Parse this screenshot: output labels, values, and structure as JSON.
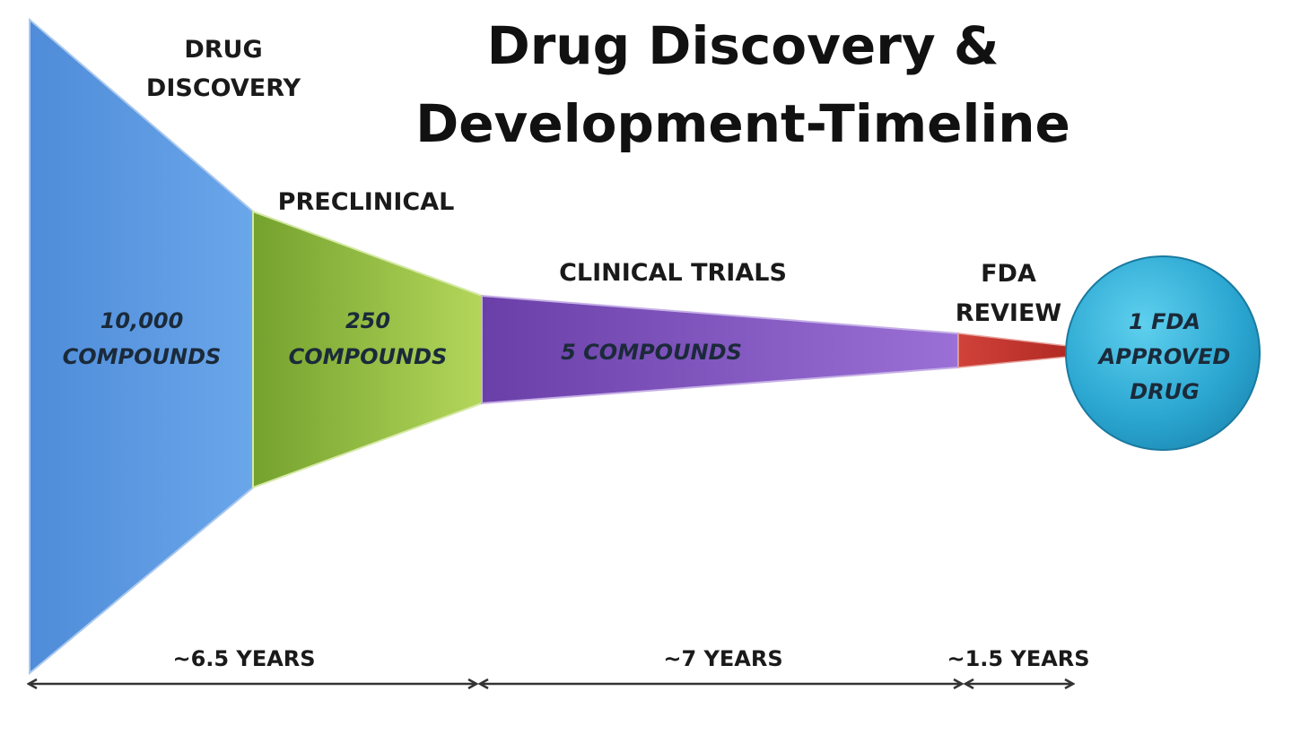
{
  "title": {
    "line1": "Drug Discovery &",
    "line2": "Development-Timeline"
  },
  "stages": [
    {
      "label_lines": [
        "DRUG",
        "DISCOVERY"
      ],
      "count_lines": [
        "10,000",
        "COMPOUNDS"
      ],
      "color": "#5a96de"
    },
    {
      "label_lines": [
        "PRECLINICAL"
      ],
      "count_lines": [
        "250",
        "COMPOUNDS"
      ],
      "color": "#8dbb3a"
    },
    {
      "label_lines": [
        "CLINICAL TRIALS"
      ],
      "count_lines": [
        "5 COMPOUNDS"
      ],
      "color": "#7a4fb5"
    },
    {
      "label_lines": [
        "FDA",
        "REVIEW"
      ],
      "count_lines": [],
      "color": "#c9302c"
    }
  ],
  "result": {
    "lines": [
      "1 FDA",
      "APPROVED",
      "DRUG"
    ],
    "color": "#2eaad3"
  },
  "durations": [
    {
      "label": "~6.5 YEARS"
    },
    {
      "label": "~7 YEARS"
    },
    {
      "label": "~1.5 YEARS"
    }
  ]
}
